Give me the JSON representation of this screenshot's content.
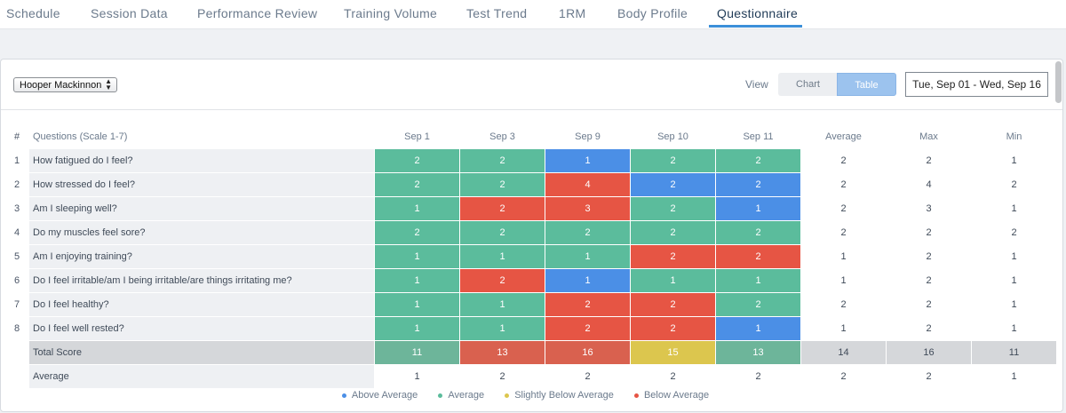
{
  "tabs": [
    {
      "label": "Schedule",
      "active": false
    },
    {
      "label": "Session Data",
      "active": false
    },
    {
      "label": "Performance Review",
      "active": false
    },
    {
      "label": "Training Volume",
      "active": false
    },
    {
      "label": "Test Trend",
      "active": false
    },
    {
      "label": "1RM",
      "active": false
    },
    {
      "label": "Body Profile",
      "active": false
    },
    {
      "label": "Questionnaire",
      "active": true
    }
  ],
  "toolbar": {
    "athlete": "Hooper Mackinnon",
    "select_arrows": "▲▼",
    "view_label": "View",
    "view_chart": "Chart",
    "view_table": "Table",
    "date_range": "Tue, Sep 01 - Wed, Sep 16"
  },
  "table": {
    "headers": {
      "num": "#",
      "question": "Questions (Scale 1-7)",
      "dates": [
        "Sep 1",
        "Sep 3",
        "Sep 9",
        "Sep 10",
        "Sep 11"
      ],
      "average": "Average",
      "max": "Max",
      "min": "Min"
    },
    "rows": [
      {
        "num": "1",
        "question": "How fatigued do I feel?",
        "values": [
          "2",
          "2",
          "1",
          "2",
          "2"
        ],
        "colors": [
          "green",
          "green",
          "blue",
          "green",
          "green"
        ],
        "average": "2",
        "max": "2",
        "min": "1"
      },
      {
        "num": "2",
        "question": "How stressed do I feel?",
        "values": [
          "2",
          "2",
          "4",
          "2",
          "2"
        ],
        "colors": [
          "green",
          "green",
          "red",
          "blue",
          "blue"
        ],
        "average": "2",
        "max": "4",
        "min": "2"
      },
      {
        "num": "3",
        "question": "Am I sleeping well?",
        "values": [
          "1",
          "2",
          "3",
          "2",
          "1"
        ],
        "colors": [
          "green",
          "red",
          "red",
          "green",
          "blue"
        ],
        "average": "2",
        "max": "3",
        "min": "1"
      },
      {
        "num": "4",
        "question": "Do my muscles feel sore?",
        "values": [
          "2",
          "2",
          "2",
          "2",
          "2"
        ],
        "colors": [
          "green",
          "green",
          "green",
          "green",
          "green"
        ],
        "average": "2",
        "max": "2",
        "min": "2"
      },
      {
        "num": "5",
        "question": "Am I enjoying training?",
        "values": [
          "1",
          "1",
          "1",
          "2",
          "2"
        ],
        "colors": [
          "green",
          "green",
          "green",
          "red",
          "red"
        ],
        "average": "1",
        "max": "2",
        "min": "1"
      },
      {
        "num": "6",
        "question": "Do I feel irritable/am I being irritable/are things irritating me?",
        "values": [
          "1",
          "2",
          "1",
          "1",
          "1"
        ],
        "colors": [
          "green",
          "red",
          "blue",
          "green",
          "green"
        ],
        "average": "1",
        "max": "2",
        "min": "1"
      },
      {
        "num": "7",
        "question": "Do I feel healthy?",
        "values": [
          "1",
          "1",
          "2",
          "2",
          "2"
        ],
        "colors": [
          "green",
          "green",
          "red",
          "red",
          "green"
        ],
        "average": "2",
        "max": "2",
        "min": "1"
      },
      {
        "num": "8",
        "question": "Do I feel well rested?",
        "values": [
          "1",
          "1",
          "2",
          "2",
          "1"
        ],
        "colors": [
          "green",
          "green",
          "red",
          "red",
          "blue"
        ],
        "average": "1",
        "max": "2",
        "min": "1"
      }
    ],
    "total": {
      "label": "Total Score",
      "values": [
        "11",
        "13",
        "16",
        "15",
        "13"
      ],
      "colors": [
        "green-muted",
        "red-muted",
        "red-muted",
        "yellow",
        "green-muted"
      ],
      "average": "14",
      "max": "16",
      "min": "11"
    },
    "avg_row": {
      "label": "Average",
      "values": [
        "1",
        "2",
        "2",
        "2",
        "2"
      ],
      "average": "2",
      "max": "2",
      "min": "1"
    }
  },
  "legend": [
    {
      "label": "Above Average",
      "color": "#4b8fe6"
    },
    {
      "label": "Average",
      "color": "#5bbc9c"
    },
    {
      "label": "Slightly Below Average",
      "color": "#dcc64e"
    },
    {
      "label": "Below Average",
      "color": "#e65544"
    }
  ]
}
